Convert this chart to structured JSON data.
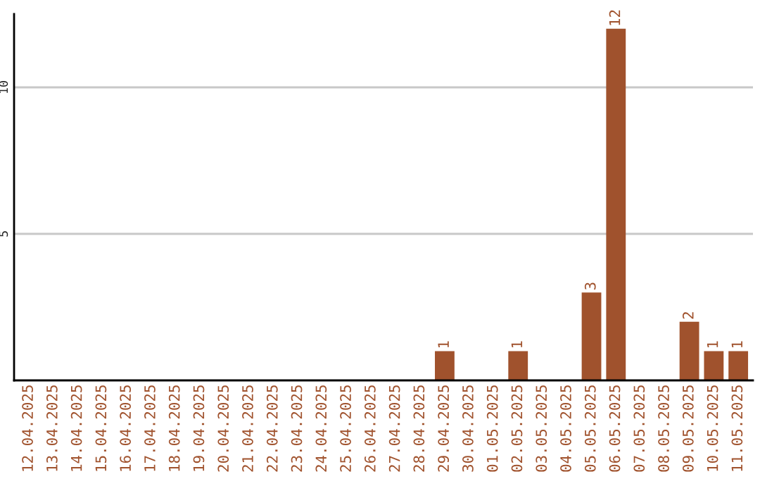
{
  "chart_data": {
    "type": "bar",
    "categories": [
      "12.04.2025",
      "13.04.2025",
      "14.04.2025",
      "15.04.2025",
      "16.04.2025",
      "17.04.2025",
      "18.04.2025",
      "19.04.2025",
      "20.04.2025",
      "21.04.2025",
      "22.04.2025",
      "23.04.2025",
      "24.04.2025",
      "25.04.2025",
      "26.04.2025",
      "27.04.2025",
      "28.04.2025",
      "29.04.2025",
      "30.04.2025",
      "01.05.2025",
      "02.05.2025",
      "03.05.2025",
      "04.05.2025",
      "05.05.2025",
      "06.05.2025",
      "07.05.2025",
      "08.05.2025",
      "09.05.2025",
      "10.05.2025",
      "11.05.2025"
    ],
    "values": [
      null,
      null,
      null,
      null,
      null,
      null,
      null,
      null,
      null,
      null,
      null,
      null,
      null,
      null,
      null,
      null,
      null,
      1,
      null,
      null,
      1,
      null,
      null,
      3,
      12,
      null,
      null,
      2,
      1,
      1
    ],
    "value_labels": [
      null,
      null,
      null,
      null,
      null,
      null,
      null,
      null,
      null,
      null,
      null,
      null,
      null,
      null,
      null,
      null,
      null,
      "1",
      null,
      null,
      "1",
      null,
      null,
      "3",
      "12",
      null,
      null,
      "2",
      "1",
      "1"
    ],
    "color": "#a0522d",
    "ylim": [
      0,
      12.5
    ],
    "yticks": [
      5,
      10
    ],
    "grid": "y"
  }
}
